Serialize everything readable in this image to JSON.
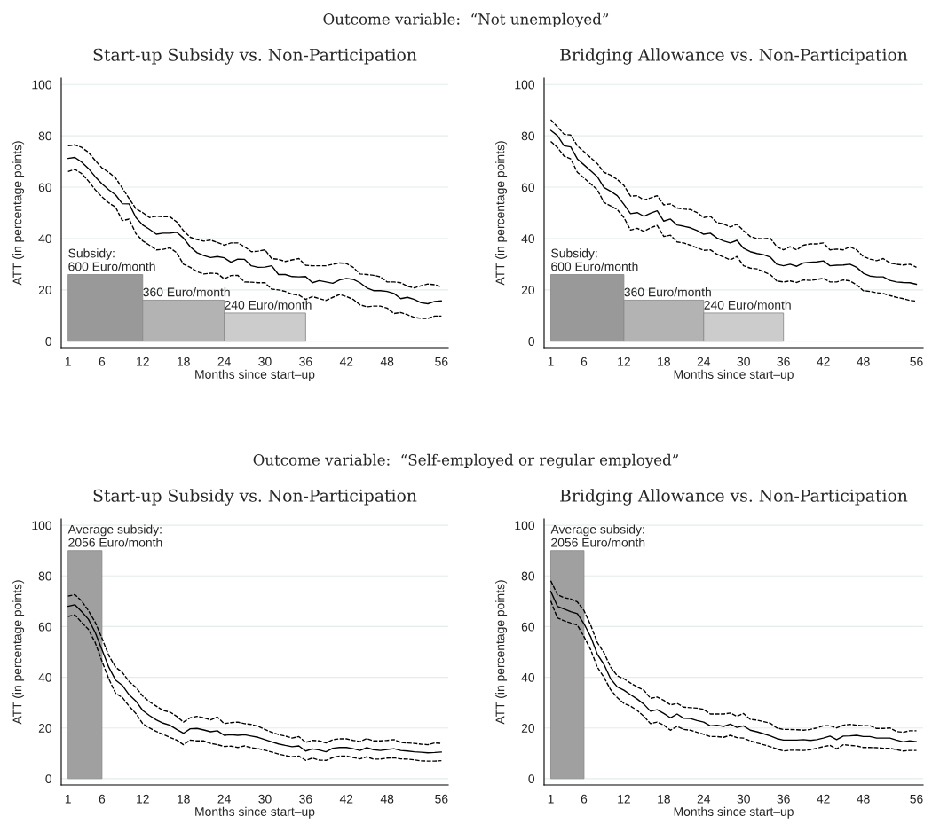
{
  "chart_data": [
    {
      "type": "line",
      "title": "Start-up Subsidy vs. Non-Participation",
      "xlabel": "Months since start–up",
      "ylabel": "ATT (in percentage points)",
      "annotations": [
        "Outcome variable:  “Not unemployed”",
        {
          "text": "Subsidy:\n600 Euro/month",
          "x": 1,
          "y": 26
        },
        {
          "text": "360 Euro/month",
          "x": 12,
          "y": 16
        },
        {
          "text": "240 Euro/month",
          "x": 24,
          "y": 11
        }
      ],
      "xlim": [
        0,
        57
      ],
      "ylim": [
        -2.5,
        102.5
      ],
      "xticks": [
        1,
        6,
        12,
        18,
        24,
        30,
        36,
        42,
        48,
        56
      ],
      "yticks": [
        0,
        20,
        40,
        60,
        80,
        100
      ],
      "grid": "y",
      "x": [
        1,
        2,
        3,
        4,
        5,
        6,
        7,
        8,
        9,
        10,
        11,
        12,
        13,
        14,
        15,
        16,
        17,
        18,
        19,
        20,
        21,
        22,
        23,
        24,
        25,
        26,
        27,
        28,
        29,
        30,
        31,
        32,
        33,
        34,
        35,
        36,
        37,
        38,
        39,
        40,
        41,
        42,
        43,
        44,
        45,
        46,
        47,
        48,
        49,
        50,
        51,
        52,
        53,
        54,
        55,
        56
      ],
      "series": [
        {
          "type": "area",
          "x": [
            1,
            12
          ],
          "values": [
            26,
            26
          ],
          "color": "#999999"
        },
        {
          "type": "area",
          "x": [
            12,
            24
          ],
          "values": [
            16,
            16
          ],
          "color": "#b3b3b3"
        },
        {
          "type": "area",
          "x": [
            24,
            36
          ],
          "values": [
            11,
            11
          ],
          "color": "#cccccc"
        },
        {
          "color": "#000000",
          "line_style": "solid",
          "values": [
            71.2,
            71.6,
            69.8,
            67.3,
            64.1,
            61.3,
            59,
            57,
            53.6,
            53.5,
            48.2,
            45.3,
            43.6,
            41.7,
            42.1,
            42.1,
            42.5,
            40.2,
            36.8,
            34.5,
            33.4,
            32.6,
            33,
            32.5,
            30.8,
            32,
            31.9,
            29.4,
            28.8,
            28.9,
            29.4,
            26,
            26,
            25.2,
            25.1,
            25.2,
            22.8,
            23.6,
            23.1,
            22.6,
            23.9,
            24.5,
            24.1,
            22.8,
            20.8,
            19.7,
            19.7,
            19.4,
            18.6,
            16.6,
            17.1,
            16.3,
            15,
            14.6,
            15.5,
            15.7
          ]
        },
        {
          "color": "#000000",
          "line_style": "dashed",
          "values": [
            76.1,
            76.5,
            75.5,
            73.6,
            70.4,
            67.5,
            65.8,
            63.6,
            59.6,
            55.6,
            51.6,
            50.1,
            48.2,
            48.7,
            48.5,
            48.5,
            46.5,
            43.1,
            40.5,
            39.6,
            39,
            39.4,
            38.5,
            37.4,
            38.3,
            38.3,
            36.8,
            34.9,
            35.1,
            35.6,
            32.2,
            31.9,
            31.1,
            31.7,
            32.2,
            29.6,
            29.4,
            29.4,
            29.4,
            30,
            30.5,
            30.3,
            28.8,
            26.2,
            26,
            25.7,
            25.1,
            23.1,
            23.1,
            22.8,
            21.4,
            20.8,
            21.6,
            22.3,
            22,
            21.2
          ]
        },
        {
          "color": "#000000",
          "line_style": "dashed",
          "values": [
            66.1,
            67,
            65.3,
            62.4,
            59,
            56.2,
            53.9,
            52.2,
            47,
            47.6,
            41.9,
            39.1,
            37.4,
            35.6,
            35.8,
            36.4,
            34.5,
            30,
            28.8,
            27.1,
            26.2,
            26.5,
            26.4,
            24.3,
            25.6,
            25.7,
            23.1,
            23,
            22.8,
            22.8,
            20.3,
            20,
            19.4,
            18.3,
            18,
            16.3,
            17.4,
            16.6,
            15.9,
            17.1,
            18.2,
            17.4,
            16.3,
            14.2,
            13.4,
            13.7,
            13.7,
            12.9,
            10.8,
            11.2,
            10.3,
            9.3,
            8.9,
            8.9,
            9.8,
            9.8
          ]
        }
      ]
    },
    {
      "type": "line",
      "title": "Bridging Allowance vs. Non-Participation",
      "xlabel": "Months since start–up",
      "ylabel": "ATT (in percentage points)",
      "annotations": [
        {
          "text": "Subsidy:\n600 Euro/month",
          "x": 1,
          "y": 26
        },
        {
          "text": "360 Euro/month",
          "x": 12,
          "y": 16
        },
        {
          "text": "240 Euro/month",
          "x": 24,
          "y": 11
        }
      ],
      "xlim": [
        0,
        57
      ],
      "ylim": [
        -2.5,
        102.5
      ],
      "xticks": [
        1,
        6,
        12,
        18,
        24,
        30,
        36,
        42,
        48,
        56
      ],
      "yticks": [
        0,
        20,
        40,
        60,
        80,
        100
      ],
      "grid": "y",
      "x": [
        1,
        2,
        3,
        4,
        5,
        6,
        7,
        8,
        9,
        10,
        11,
        12,
        13,
        14,
        15,
        16,
        17,
        18,
        19,
        20,
        21,
        22,
        23,
        24,
        25,
        26,
        27,
        28,
        29,
        30,
        31,
        32,
        33,
        34,
        35,
        36,
        37,
        38,
        39,
        40,
        41,
        42,
        43,
        44,
        45,
        46,
        47,
        48,
        49,
        50,
        51,
        52,
        53,
        54,
        55,
        56
      ],
      "series": [
        {
          "type": "area",
          "x": [
            1,
            12
          ],
          "values": [
            26,
            26
          ],
          "color": "#999999"
        },
        {
          "type": "area",
          "x": [
            12,
            24
          ],
          "values": [
            16,
            16
          ],
          "color": "#b3b3b3"
        },
        {
          "type": "area",
          "x": [
            24,
            36
          ],
          "values": [
            11,
            11
          ],
          "color": "#cccccc"
        },
        {
          "color": "#000000",
          "line_style": "solid",
          "values": [
            82.1,
            80.1,
            76.1,
            75.7,
            71,
            68.7,
            66.4,
            64.1,
            59.9,
            58.4,
            56.7,
            53.3,
            49.7,
            50.1,
            48.7,
            49.9,
            50.8,
            46.8,
            47.6,
            45.3,
            44.8,
            44.2,
            43.1,
            41.7,
            42.1,
            40.2,
            39.1,
            38.3,
            39.3,
            36.2,
            34.9,
            34.2,
            33.7,
            32.8,
            30,
            29.4,
            30,
            29.2,
            30.5,
            30.8,
            30.9,
            31.3,
            29.4,
            29.6,
            29.7,
            30,
            28.8,
            26.5,
            25.4,
            25.1,
            25.1,
            23.7,
            23.1,
            22.9,
            22.8,
            22.2
          ]
        },
        {
          "color": "#000000",
          "line_style": "dashed",
          "values": [
            86.3,
            83.5,
            80.6,
            80.3,
            76.1,
            73.8,
            71.5,
            69.2,
            65.8,
            64.7,
            63,
            60.7,
            56.5,
            56.7,
            55,
            55.8,
            56.7,
            53.1,
            53.5,
            51.9,
            51.5,
            51.3,
            50.1,
            48.2,
            48.7,
            46.2,
            45.7,
            44.5,
            45.6,
            43.1,
            40.8,
            40,
            39.9,
            40.2,
            36.8,
            35.6,
            36.8,
            35.6,
            37.4,
            37.9,
            37.9,
            38.3,
            35.6,
            35.9,
            35.6,
            36.8,
            35.6,
            33,
            32,
            31.4,
            32.2,
            30.5,
            30,
            29.7,
            30,
            28.8
          ]
        },
        {
          "color": "#000000",
          "line_style": "dashed",
          "values": [
            77.8,
            75.5,
            72.1,
            71,
            65.8,
            63.6,
            61.3,
            59,
            54.1,
            52.7,
            51.3,
            48.2,
            43.3,
            44,
            42.8,
            44.2,
            45.1,
            40.8,
            41.3,
            38.7,
            38.3,
            37.4,
            36.4,
            35.4,
            35.6,
            33.9,
            32.8,
            31.7,
            33,
            29.4,
            28.5,
            28.2,
            27.1,
            26,
            23.5,
            23.1,
            23.5,
            22.9,
            23.9,
            23.7,
            24.1,
            24.5,
            23.1,
            23.1,
            23.9,
            23.5,
            22,
            19.7,
            19.4,
            18.9,
            18.6,
            17.8,
            17.1,
            16.6,
            15.9,
            15.6
          ]
        }
      ]
    },
    {
      "type": "line",
      "title": "Start-up Subsidy vs. Non-Participation",
      "xlabel": "Months since start–up",
      "ylabel": "ATT (in percentage points)",
      "annotations": [
        "Outcome variable:  “Self-employed or regular employed”",
        {
          "text": "Average subsidy:\n2056 Euro/month",
          "x": 1,
          "y": 90
        }
      ],
      "xlim": [
        0,
        57
      ],
      "ylim": [
        -2.5,
        102.5
      ],
      "xticks": [
        1,
        6,
        12,
        18,
        24,
        30,
        36,
        42,
        48,
        56
      ],
      "yticks": [
        0,
        20,
        40,
        60,
        80,
        100
      ],
      "grid": "y",
      "x": [
        1,
        2,
        3,
        4,
        5,
        6,
        7,
        8,
        9,
        10,
        11,
        12,
        13,
        14,
        15,
        16,
        17,
        18,
        19,
        20,
        21,
        22,
        23,
        24,
        25,
        26,
        27,
        28,
        29,
        30,
        31,
        32,
        33,
        34,
        35,
        36,
        37,
        38,
        39,
        40,
        41,
        42,
        43,
        44,
        45,
        46,
        47,
        48,
        49,
        50,
        51,
        52,
        53,
        54,
        55,
        56
      ],
      "series": [
        {
          "type": "area",
          "x": [
            1,
            6
          ],
          "values": [
            90,
            90
          ],
          "color": "#a0a0a0"
        },
        {
          "color": "#000000",
          "line_style": "solid",
          "values": [
            68,
            68.6,
            65.9,
            62.9,
            57.7,
            50.9,
            44,
            38.9,
            36.8,
            33.1,
            30.6,
            26.9,
            24.9,
            23.2,
            21.9,
            21.1,
            19.4,
            17.9,
            19.7,
            19.8,
            19.2,
            18.5,
            18.9,
            17.1,
            17.3,
            17.1,
            17.3,
            16.8,
            16.3,
            15.4,
            14.5,
            13.7,
            13.1,
            12.6,
            12.9,
            10.9,
            11.7,
            11.3,
            10.6,
            12,
            12.3,
            12.3,
            11.8,
            11.1,
            12.2,
            11.4,
            11.1,
            11.5,
            11.8,
            11.1,
            10.9,
            10.6,
            10.4,
            10.2,
            10.3,
            10.5
          ]
        },
        {
          "color": "#000000",
          "line_style": "dashed",
          "values": [
            72,
            72.6,
            70.1,
            66.3,
            61.7,
            55.4,
            48.6,
            44,
            41.9,
            38.3,
            36,
            32.6,
            30.3,
            28.6,
            26.9,
            26.3,
            24.6,
            22.3,
            24,
            24.6,
            24,
            23.2,
            24.3,
            21.7,
            22.1,
            22.3,
            21.7,
            21.4,
            20.6,
            19.4,
            18.3,
            17.4,
            16.8,
            16,
            16.6,
            14.3,
            15.1,
            14.9,
            14.1,
            15.4,
            15.7,
            15.7,
            15.1,
            14.6,
            15.8,
            14.9,
            14.9,
            15.1,
            15.4,
            14.3,
            14.1,
            13.9,
            13.6,
            13.4,
            14.1,
            13.9
          ]
        },
        {
          "color": "#000000",
          "line_style": "dashed",
          "values": [
            64,
            64.6,
            61.7,
            58.9,
            53.7,
            46.3,
            39.4,
            33.7,
            32,
            28.6,
            25.7,
            21.7,
            20,
            18.6,
            17.5,
            16.3,
            15.2,
            13.4,
            15.2,
            14.9,
            14.9,
            13.9,
            13.4,
            12.7,
            12.8,
            12.3,
            12.9,
            12.2,
            11.8,
            11.2,
            10.5,
            9.7,
            9.1,
            8.6,
            8.9,
            7.2,
            8.1,
            7.3,
            7.2,
            8.3,
            8.9,
            8.9,
            8.3,
            7.8,
            8.6,
            7.7,
            7.7,
            8.1,
            8.2,
            7.8,
            7.7,
            7.4,
            7,
            6.9,
            6.9,
            7.1
          ]
        }
      ]
    },
    {
      "type": "line",
      "title": "Bridging Allowance vs. Non-Participation",
      "xlabel": "Months since start–up",
      "ylabel": "ATT (in percentage points)",
      "annotations": [
        {
          "text": "Average subsidy:\n2056 Euro/month",
          "x": 1,
          "y": 90
        }
      ],
      "xlim": [
        0,
        57
      ],
      "ylim": [
        -2.5,
        102.5
      ],
      "xticks": [
        1,
        6,
        12,
        18,
        24,
        30,
        36,
        42,
        48,
        56
      ],
      "yticks": [
        0,
        20,
        40,
        60,
        80,
        100
      ],
      "grid": "y",
      "x": [
        1,
        2,
        3,
        4,
        5,
        6,
        7,
        8,
        9,
        10,
        11,
        12,
        13,
        14,
        15,
        16,
        17,
        18,
        19,
        20,
        21,
        22,
        23,
        24,
        25,
        26,
        27,
        28,
        29,
        30,
        31,
        32,
        33,
        34,
        35,
        36,
        37,
        38,
        39,
        40,
        41,
        42,
        43,
        44,
        45,
        46,
        47,
        48,
        49,
        50,
        51,
        52,
        53,
        54,
        55,
        56
      ],
      "series": [
        {
          "type": "area",
          "x": [
            1,
            6
          ],
          "values": [
            90,
            90
          ],
          "color": "#a0a0a0"
        },
        {
          "color": "#000000",
          "line_style": "solid",
          "values": [
            73.9,
            68,
            66.9,
            65.9,
            65.1,
            61.1,
            56,
            49.1,
            45.1,
            39.4,
            36.2,
            34.9,
            33.1,
            31.4,
            29.4,
            26.6,
            27.2,
            25.7,
            24,
            25.5,
            23.8,
            23.7,
            22.9,
            22.3,
            20.8,
            21.1,
            20.6,
            21.5,
            20.2,
            20.8,
            19.1,
            18.5,
            17.7,
            16.9,
            15.8,
            15.2,
            15.2,
            15.2,
            15.4,
            15.1,
            15.4,
            16,
            16.8,
            15.4,
            16.8,
            16.9,
            17.1,
            16.6,
            16.6,
            16,
            16,
            16,
            15.2,
            14.5,
            14.9,
            14.6
          ]
        },
        {
          "color": "#000000",
          "line_style": "dashed",
          "values": [
            78.1,
            72.6,
            71.4,
            70.9,
            69.7,
            66.3,
            60.6,
            53.7,
            49.7,
            44,
            40.6,
            39.4,
            37.7,
            36.2,
            34.9,
            31.7,
            32.2,
            30.9,
            29.1,
            29.7,
            28.2,
            28,
            27.8,
            27.3,
            25.5,
            25.5,
            25.5,
            25.9,
            24.6,
            25.7,
            23.4,
            23.1,
            22.5,
            21.9,
            20,
            19.4,
            19.4,
            19.3,
            19.1,
            19.4,
            20,
            20.9,
            20.9,
            20,
            21.1,
            21.4,
            21.1,
            20.9,
            20.9,
            19.8,
            19.8,
            20,
            18.6,
            18.3,
            18.9,
            18.9
          ]
        },
        {
          "color": "#000000",
          "line_style": "dashed",
          "values": [
            70.1,
            63.4,
            62.3,
            61.4,
            60.6,
            56,
            50.9,
            44,
            40,
            35.1,
            32,
            29.7,
            28.6,
            26.9,
            24.6,
            21.7,
            22.3,
            21.1,
            19.1,
            20.6,
            19.4,
            19.1,
            18.3,
            17.5,
            16.6,
            16.6,
            16.3,
            17.1,
            16.2,
            16,
            14.9,
            14.1,
            13.4,
            12.6,
            11.7,
            10.9,
            11.2,
            11.2,
            11.1,
            11.4,
            12,
            12.6,
            13.1,
            11.7,
            13.4,
            13.1,
            12.9,
            12.3,
            12.3,
            12.2,
            12,
            12,
            11.4,
            10.9,
            11.1,
            11.1
          ]
        }
      ]
    }
  ]
}
